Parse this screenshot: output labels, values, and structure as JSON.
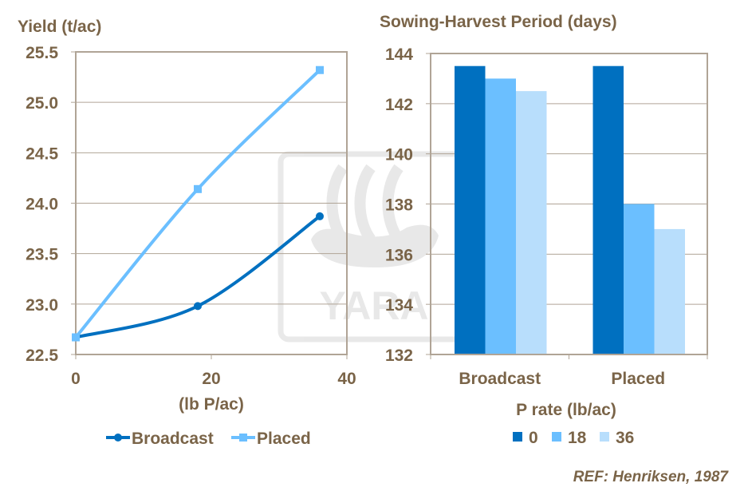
{
  "colors": {
    "text": "#7a6448",
    "axis": "#b0a496",
    "broadcast": "#0070c0",
    "placed": "#6bbfff",
    "p0": "#0070c0",
    "p18": "#6bbfff",
    "p36": "#b8defc"
  },
  "watermark": {
    "text": "YARA"
  },
  "reference": "REF: Henriksen, 1987",
  "chart_data": [
    {
      "type": "line",
      "title": "Yield (t/ac)",
      "xlabel": "(lb P/ac)",
      "ylabel": "",
      "xlim": [
        0,
        40
      ],
      "ylim": [
        22.5,
        25.5
      ],
      "xticks": [
        "0",
        "20",
        "40"
      ],
      "yticks": [
        "22.5",
        "23.0",
        "23.5",
        "24.0",
        "24.5",
        "25.0",
        "25.5"
      ],
      "grid": true,
      "legend": "bottom",
      "x": [
        0,
        18,
        36
      ],
      "series": [
        {
          "name": "Broadcast",
          "values": [
            22.67,
            22.98,
            23.87
          ],
          "marker": "circle",
          "color": "#0070c0"
        },
        {
          "name": "Placed",
          "values": [
            22.67,
            24.14,
            25.32
          ],
          "marker": "square",
          "color": "#6bbfff"
        }
      ]
    },
    {
      "type": "bar",
      "title": "Sowing-Harvest Period (days)",
      "xlabel": "",
      "ylabel": "",
      "ylim": [
        132,
        144
      ],
      "yticks": [
        "132",
        "134",
        "136",
        "138",
        "140",
        "142",
        "144"
      ],
      "grid": true,
      "legend": "bottom",
      "legend_title": "P rate  (lb/ac)",
      "categories": [
        "Broadcast",
        "Placed"
      ],
      "series": [
        {
          "name": "0",
          "values": [
            143.5,
            143.5
          ],
          "color": "#0070c0"
        },
        {
          "name": "18",
          "values": [
            143,
            138
          ],
          "color": "#6bbfff"
        },
        {
          "name": "36",
          "values": [
            142.5,
            137
          ],
          "color": "#b8defc"
        }
      ]
    }
  ]
}
